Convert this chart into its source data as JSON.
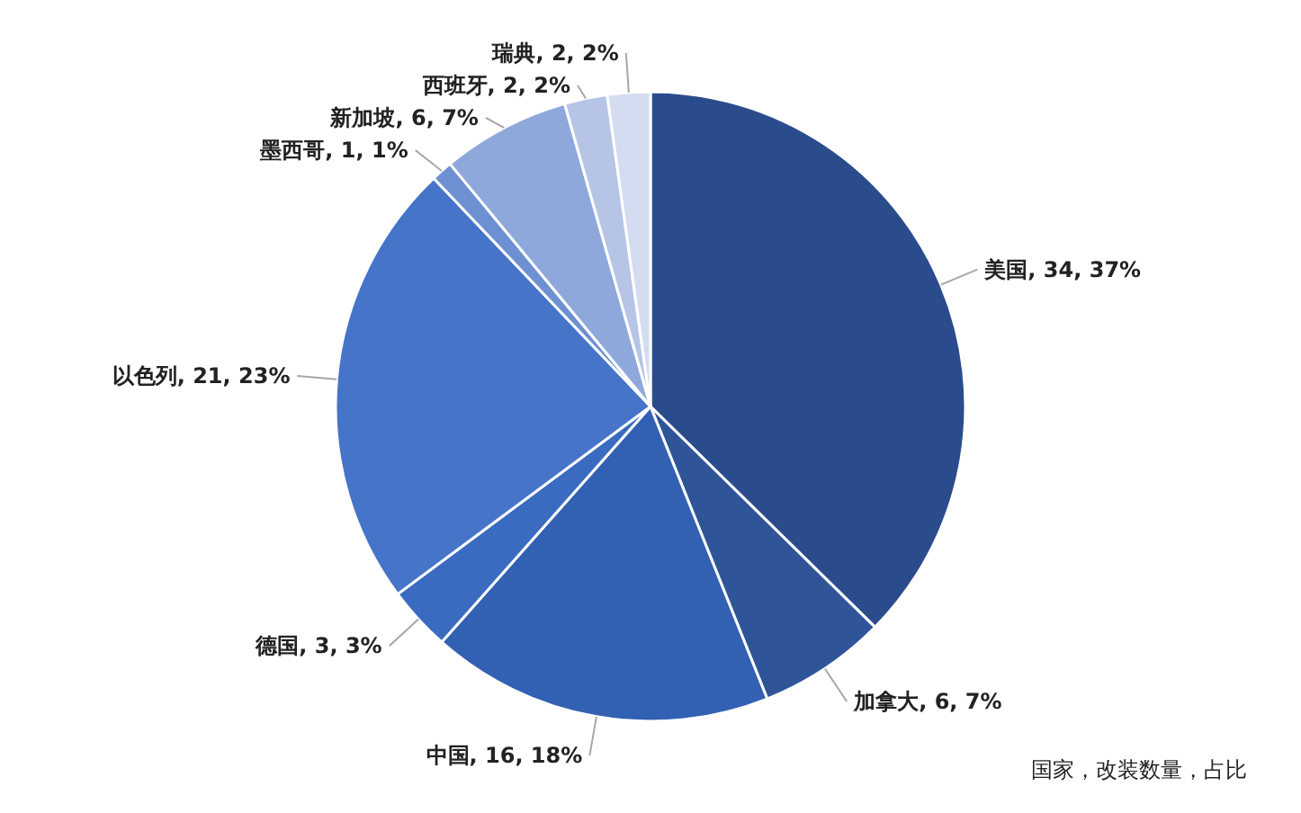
{
  "chart_data": {
    "type": "pie",
    "categories": [
      "美国",
      "加拿大",
      "中国",
      "德国",
      "以色列",
      "墨西哥",
      "新加坡",
      "西班牙",
      "瑞典"
    ],
    "values": [
      34,
      6,
      16,
      3,
      21,
      1,
      6,
      2,
      2
    ],
    "value_labels": [
      "34, 37%",
      "6, 7%",
      "16, 18%",
      "3, 3%",
      "21, 23%",
      "1, 1%",
      "6, 7%",
      "2, 2%",
      "2, 2%"
    ],
    "colors": [
      "#2b4c8c",
      "#2f5598",
      "#3260b2",
      "#3a6bc0",
      "#4574c8",
      "#6d90d2",
      "#8fa8dc",
      "#b6c4e6",
      "#d3dcf0"
    ],
    "annotations": [
      "国家，改装数量，占比"
    ]
  }
}
